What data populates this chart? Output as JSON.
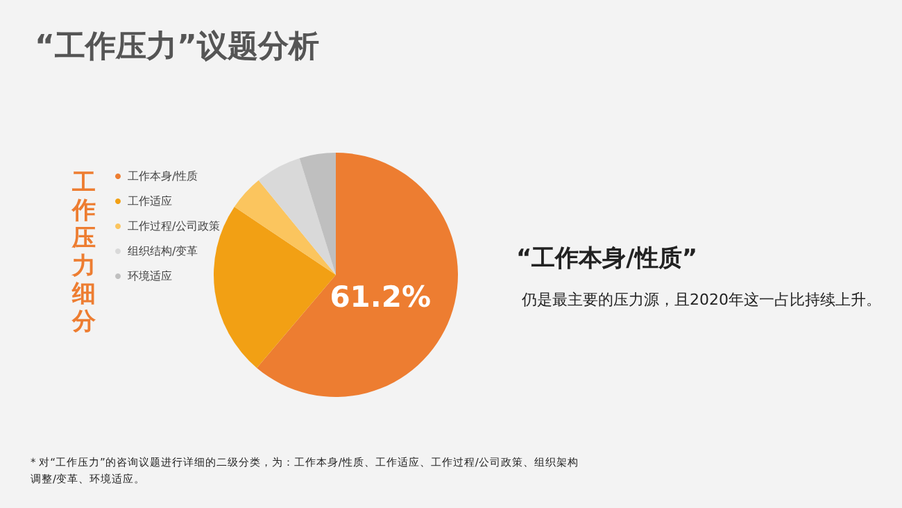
{
  "chart_data": {
    "type": "pie",
    "title": "“工作压力”议题分析",
    "legend_title": "工作压力细分",
    "categories": [
      "工作本身/性质",
      "工作适应",
      "工作过程/公司政策",
      "组织结构/变革",
      "环境适应"
    ],
    "values": [
      61.2,
      23.2,
      4.7,
      6.1,
      4.8
    ],
    "colors": [
      "#ed7d31",
      "#f2a014",
      "#fbc55e",
      "#d9d9d9",
      "#bfbfbf"
    ],
    "value_labels": [
      "61.2%",
      null,
      null,
      null,
      null
    ],
    "legend": "left",
    "annotations": [
      "“工作本身/性质”",
      "仍是最主要的压力源，且2020年这一占比持续上升。",
      "* 对“工作压力”的咨询议题进行详细的二级分类，为：工作本身/性质、工作适应、工作过程/公司政策、组织架构调整/变革、环境适应。"
    ]
  }
}
